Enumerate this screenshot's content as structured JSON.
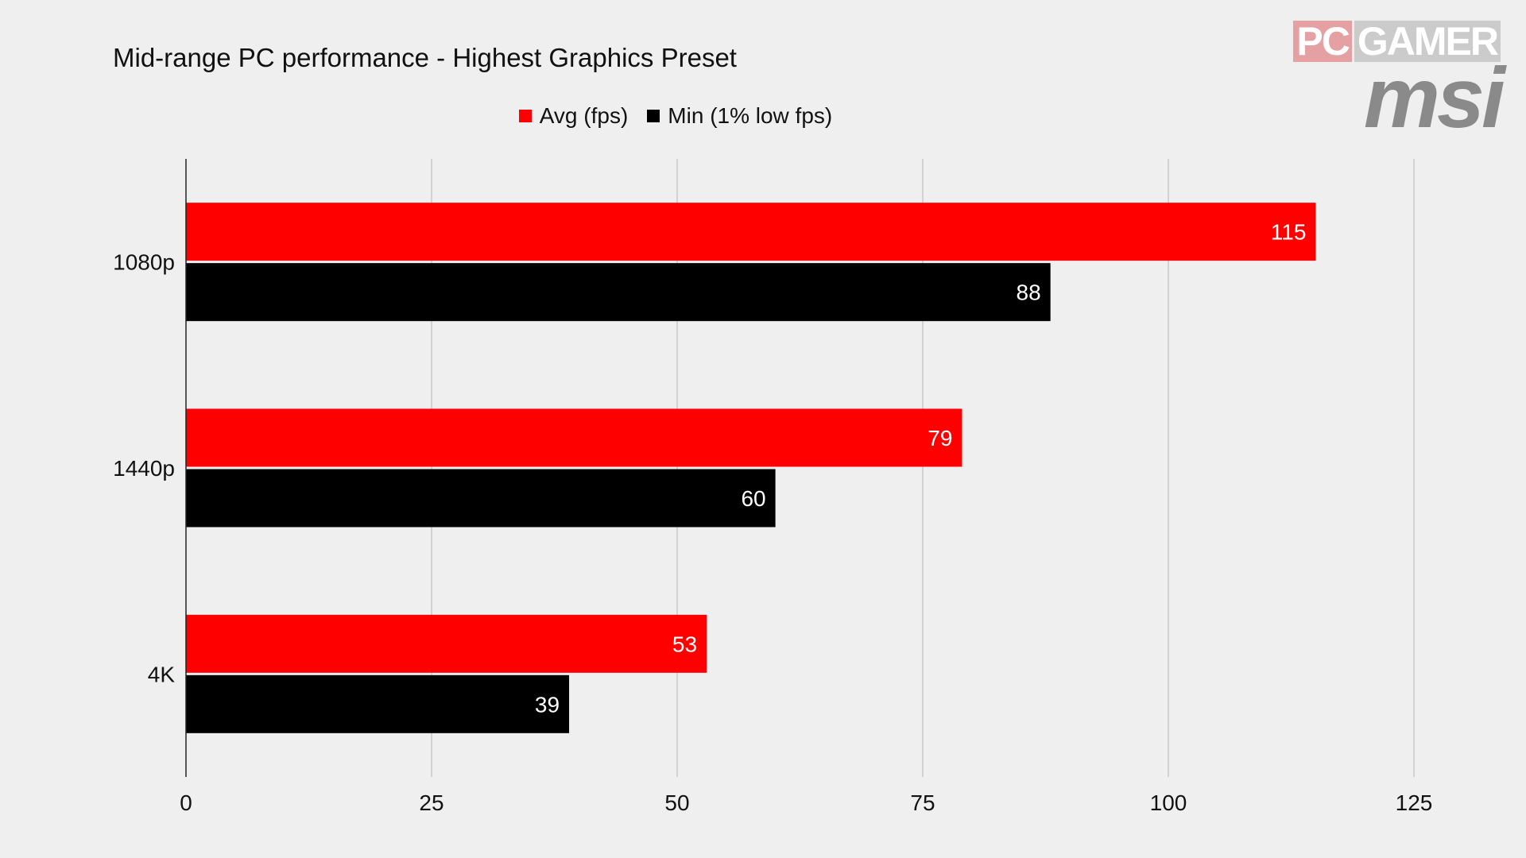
{
  "chart_data": {
    "type": "bar",
    "orientation": "horizontal",
    "title": "Mid-range PC performance - Highest Graphics Preset",
    "xlabel": "",
    "ylabel": "",
    "categories": [
      "1080p",
      "1440p",
      "4K"
    ],
    "series": [
      {
        "name": "Avg (fps)",
        "color": "#ff0000",
        "label_color": "#ffffff",
        "values": [
          115,
          79,
          53
        ]
      },
      {
        "name": "Min (1% low fps)",
        "color": "#000000",
        "label_color": "#ffffff",
        "values": [
          88,
          60,
          39
        ]
      }
    ],
    "xlim": [
      0,
      125
    ],
    "xticks": [
      "0",
      "25",
      "50",
      "75",
      "100",
      "125"
    ],
    "grid": true,
    "legend_position": "top-center",
    "data_labels": true
  },
  "branding": {
    "pc": "PC",
    "gamer": "GAMER",
    "msi": "msi"
  }
}
